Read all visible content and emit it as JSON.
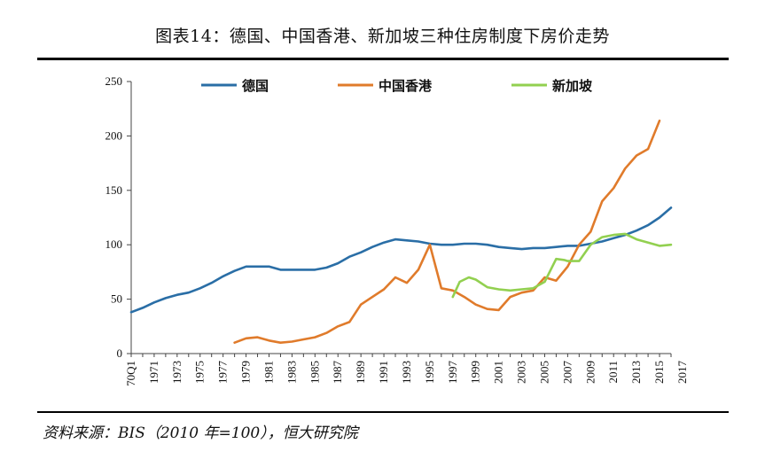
{
  "title": "图表14：德国、中国香港、新加坡三种住房制度下房价走势",
  "source": "资料来源：BIS（2010 年=100），恒大研究院",
  "chart_data": {
    "type": "line",
    "ylim": [
      0,
      250
    ],
    "yticks": [
      0,
      50,
      100,
      150,
      200,
      250
    ],
    "x_tick_labels": [
      "70Q1",
      "1971",
      "1973",
      "1975",
      "1977",
      "1979",
      "1981",
      "1983",
      "1985",
      "1987",
      "1989",
      "1991",
      "1993",
      "1995",
      "1997",
      "1999",
      "2001",
      "2003",
      "2005",
      "2007",
      "2009",
      "2011",
      "2013",
      "2015",
      "2017"
    ],
    "xrange": [
      1970,
      2017
    ],
    "legend_position": "top",
    "series": [
      {
        "name": "德国",
        "color": "#2a6ea6",
        "points": [
          [
            1970,
            38
          ],
          [
            1971,
            42
          ],
          [
            1972,
            47
          ],
          [
            1973,
            51
          ],
          [
            1974,
            54
          ],
          [
            1975,
            56
          ],
          [
            1976,
            60
          ],
          [
            1977,
            65
          ],
          [
            1978,
            71
          ],
          [
            1979,
            76
          ],
          [
            1980,
            80
          ],
          [
            1981,
            80
          ],
          [
            1982,
            80
          ],
          [
            1983,
            77
          ],
          [
            1984,
            77
          ],
          [
            1985,
            77
          ],
          [
            1986,
            77
          ],
          [
            1987,
            79
          ],
          [
            1988,
            83
          ],
          [
            1989,
            89
          ],
          [
            1990,
            93
          ],
          [
            1991,
            98
          ],
          [
            1992,
            102
          ],
          [
            1993,
            105
          ],
          [
            1994,
            104
          ],
          [
            1995,
            103
          ],
          [
            1996,
            101
          ],
          [
            1997,
            100
          ],
          [
            1998,
            100
          ],
          [
            1999,
            101
          ],
          [
            2000,
            101
          ],
          [
            2001,
            100
          ],
          [
            2002,
            98
          ],
          [
            2003,
            97
          ],
          [
            2004,
            96
          ],
          [
            2005,
            97
          ],
          [
            2006,
            97
          ],
          [
            2007,
            98
          ],
          [
            2008,
            99
          ],
          [
            2009,
            99
          ],
          [
            2010,
            101
          ],
          [
            2011,
            103
          ],
          [
            2012,
            106
          ],
          [
            2013,
            109
          ],
          [
            2014,
            113
          ],
          [
            2015,
            118
          ],
          [
            2016,
            125
          ],
          [
            2017,
            134
          ]
        ]
      },
      {
        "name": "中国香港",
        "color": "#e07b2b",
        "points": [
          [
            1979,
            10
          ],
          [
            1980,
            14
          ],
          [
            1981,
            15
          ],
          [
            1982,
            12
          ],
          [
            1983,
            10
          ],
          [
            1984,
            11
          ],
          [
            1985,
            13
          ],
          [
            1986,
            15
          ],
          [
            1987,
            19
          ],
          [
            1988,
            25
          ],
          [
            1989,
            29
          ],
          [
            1990,
            45
          ],
          [
            1991,
            52
          ],
          [
            1992,
            59
          ],
          [
            1993,
            70
          ],
          [
            1994,
            65
          ],
          [
            1995,
            77
          ],
          [
            1996,
            100
          ],
          [
            1997,
            60
          ],
          [
            1998,
            58
          ],
          [
            1999,
            52
          ],
          [
            2000,
            45
          ],
          [
            2001,
            41
          ],
          [
            2002,
            40
          ],
          [
            2003,
            52
          ],
          [
            2004,
            56
          ],
          [
            2005,
            58
          ],
          [
            2006,
            70
          ],
          [
            2007,
            67
          ],
          [
            2008,
            80
          ],
          [
            2009,
            100
          ],
          [
            2010,
            112
          ],
          [
            2011,
            140
          ],
          [
            2012,
            152
          ],
          [
            2013,
            170
          ],
          [
            2014,
            182
          ],
          [
            2015,
            188
          ],
          [
            2016,
            214
          ]
        ]
      },
      {
        "name": "新加坡",
        "color": "#92d050",
        "points": [
          [
            1998,
            52
          ],
          [
            1998.6,
            66
          ],
          [
            1999.4,
            70
          ],
          [
            2000,
            68
          ],
          [
            2001,
            61
          ],
          [
            2002,
            59
          ],
          [
            2003,
            58
          ],
          [
            2004,
            59
          ],
          [
            2005,
            60
          ],
          [
            2006,
            66
          ],
          [
            2007,
            87
          ],
          [
            2007.7,
            86
          ],
          [
            2008,
            85
          ],
          [
            2009,
            85
          ],
          [
            2010,
            100
          ],
          [
            2011,
            107
          ],
          [
            2012,
            109
          ],
          [
            2013,
            110
          ],
          [
            2014,
            105
          ],
          [
            2015,
            102
          ],
          [
            2016,
            99
          ],
          [
            2017,
            100
          ]
        ]
      }
    ]
  }
}
